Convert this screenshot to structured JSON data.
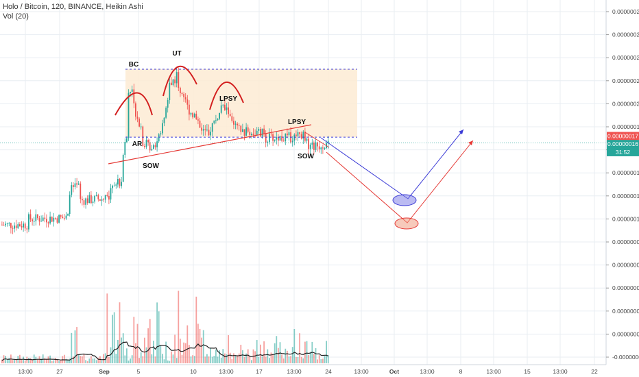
{
  "header": {
    "symbol_line": "Holo / Bitcoin, 120, BINANCE, Heikin Ashi",
    "volume_line": "Vol (20)"
  },
  "colors": {
    "up": "#26a69a",
    "down": "#ef5350",
    "grid": "#e8edf2",
    "range_fill": "#fdebd3",
    "range_border": "#3b3bd6",
    "blue_path": "#3b3bd6",
    "red_path": "#e53935",
    "label_red": "#ef5350",
    "label_green": "#26a69a"
  },
  "chart_data": {
    "type": "candlestick",
    "ylim": [
      -2e-08,
      2.9e-07
    ],
    "y_ticks": [
      "0.00000028",
      "0.00000026",
      "0.00000024",
      "0.00000022",
      "0.00000020",
      "0.00000018",
      "0.00000016",
      "0.00000014",
      "0.00000012",
      "0.00000010",
      "0.00000008",
      "0.00000006",
      "0.00000004",
      "0.00000002",
      "0.00000000",
      "-0.00000002"
    ],
    "y_tick_values": [
      2.8e-07,
      2.6e-07,
      2.4e-07,
      2.2e-07,
      2e-07,
      1.8e-07,
      1.6e-07,
      1.4e-07,
      1.2e-07,
      1e-07,
      8e-08,
      6e-08,
      4e-08,
      2e-08,
      0.0,
      -2e-08
    ],
    "x_ticks": [
      "13:00",
      "27",
      "Sep",
      "5",
      "10",
      "13:00",
      "17",
      "13:00",
      "24",
      "13:00",
      "Oct",
      "13:00",
      "8",
      "13:00",
      "15",
      "13:00",
      "22"
    ],
    "price_labels": [
      {
        "text": "0.00000017",
        "value": 1.72e-07,
        "kind": "red"
      },
      {
        "text": "0.00000016",
        "value": 1.65e-07,
        "kind": "green"
      },
      {
        "text": "31:52",
        "value": 1.58e-07,
        "kind": "green"
      }
    ],
    "annotations": [
      "BC",
      "UT",
      "LPSY",
      "LPSY",
      "AR",
      "SOW",
      "SOW"
    ],
    "levels": {
      "range_top": 2.3e-07,
      "range_bottom": 1.71e-07,
      "current_price": 1.66e-07
    }
  }
}
